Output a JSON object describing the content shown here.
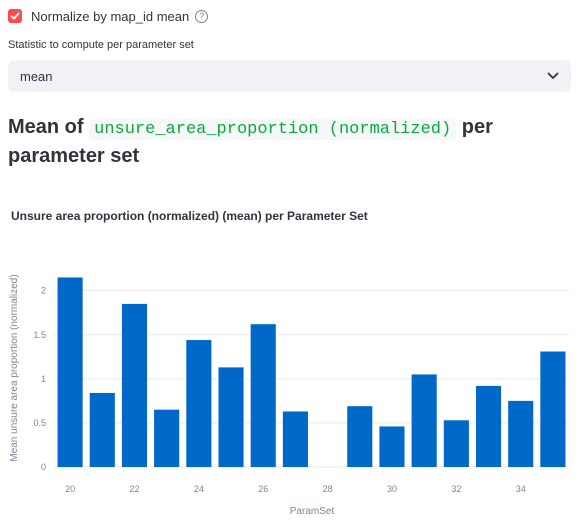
{
  "checkbox": {
    "label": "Normalize by map_id mean",
    "checked": true,
    "help_icon": "question-circle-icon"
  },
  "statistic": {
    "label": "Statistic to compute per parameter set",
    "value": "mean",
    "icon": "chevron-down-icon"
  },
  "heading": {
    "prefix": "Mean of",
    "code": "unsure_area_proportion (normalized)",
    "suffix": "per parameter set"
  },
  "colors": {
    "accent": "#ff4b4b",
    "bar": "#0068c9",
    "code": "#09ab3b"
  },
  "chart_data": {
    "type": "bar",
    "title": "Unsure area proportion (normalized) (mean) per Parameter Set",
    "xlabel": "ParamSet",
    "ylabel": "Mean unsure area proportion (normalized)",
    "x": [
      20,
      21,
      22,
      23,
      24,
      25,
      26,
      27,
      29,
      30,
      31,
      32,
      33,
      34,
      35
    ],
    "values": [
      2.15,
      0.84,
      1.85,
      0.65,
      1.44,
      1.13,
      1.62,
      0.63,
      0.69,
      0.46,
      1.05,
      0.53,
      0.92,
      0.75,
      1.31
    ],
    "x_ticks": [
      20,
      22,
      24,
      26,
      28,
      30,
      32,
      34
    ],
    "y_ticks": [
      0,
      0.5,
      1,
      1.5,
      2
    ],
    "xlim": [
      19.5,
      35.5
    ],
    "ylim": [
      0,
      2.28
    ],
    "grid": true
  }
}
